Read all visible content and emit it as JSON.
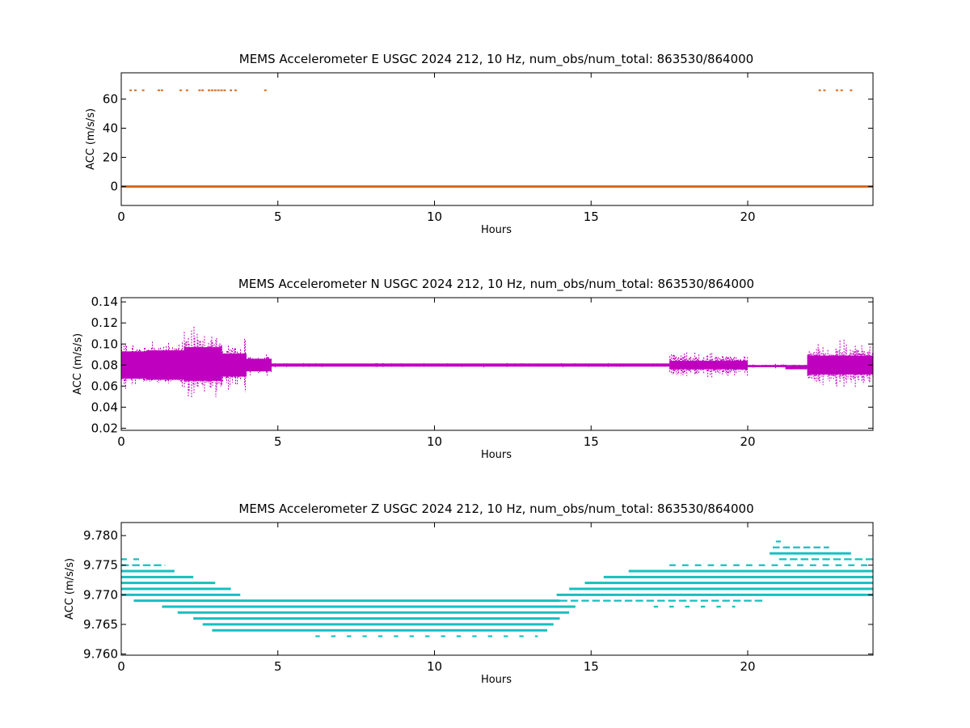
{
  "figure": {
    "background": "#ffffff"
  },
  "chart_data": [
    {
      "type": "scatter",
      "title": "MEMS Accelerometer E USGC 2024 212, 10 Hz, num_obs/num_total: 863530/864000",
      "xlabel": "Hours",
      "ylabel": "ACC (m/s/s)",
      "xlim": [
        0,
        24
      ],
      "ylim": [
        -13,
        78
      ],
      "xticks": [
        "0",
        "5",
        "10",
        "15",
        "20"
      ],
      "xtick_values": [
        0,
        5,
        10,
        15,
        20
      ],
      "yticks": [
        "0",
        "20",
        "40",
        "60"
      ],
      "ytick_values": [
        0,
        20,
        40,
        60
      ],
      "grid": false,
      "color": "#d2691e",
      "series": [
        {
          "baseline": {
            "x": [
              0,
              24
            ],
            "y": 0
          },
          "outliers": {
            "y": 66,
            "x": [
              0.3,
              0.45,
              0.7,
              1.2,
              1.3,
              1.9,
              2.1,
              2.5,
              2.6,
              2.8,
              2.9,
              3.0,
              3.1,
              3.2,
              3.3,
              3.5,
              3.65,
              4.6,
              22.3,
              22.45,
              22.85,
              23.0,
              23.3
            ]
          }
        }
      ]
    },
    {
      "type": "scatter",
      "title": "MEMS Accelerometer N USGC 2024 212, 10 Hz, num_obs/num_total: 863530/864000",
      "xlabel": "Hours",
      "ylabel": "ACC (m/s/s)",
      "xlim": [
        0,
        24
      ],
      "ylim": [
        0.018,
        0.144
      ],
      "xticks": [
        "0",
        "5",
        "10",
        "15",
        "20"
      ],
      "xtick_values": [
        0,
        5,
        10,
        15,
        20
      ],
      "yticks": [
        "0.02",
        "0.04",
        "0.06",
        "0.08",
        "0.10",
        "0.12",
        "0.14"
      ],
      "ytick_values": [
        0.02,
        0.04,
        0.06,
        0.08,
        0.1,
        0.12,
        0.14
      ],
      "grid": false,
      "color": "#bf00bf",
      "series": [
        {
          "segments": [
            {
              "x": [
                0.0,
                0.8
              ],
              "center": 0.08,
              "dense_halfwidth": 0.013,
              "sparse_halfwidth": 0.026
            },
            {
              "x": [
                0.8,
                2.0
              ],
              "center": 0.08,
              "dense_halfwidth": 0.014,
              "sparse_halfwidth": 0.028
            },
            {
              "x": [
                2.0,
                3.2
              ],
              "center": 0.081,
              "dense_halfwidth": 0.016,
              "sparse_halfwidth": 0.035
            },
            {
              "x": [
                3.2,
                4.0
              ],
              "center": 0.08,
              "dense_halfwidth": 0.011,
              "sparse_halfwidth": 0.024
            },
            {
              "x": [
                4.0,
                4.8
              ],
              "center": 0.08,
              "dense_halfwidth": 0.006,
              "sparse_halfwidth": 0.012
            },
            {
              "x": [
                4.8,
                17.5
              ],
              "center": 0.08,
              "dense_halfwidth": 0.0015,
              "sparse_halfwidth": 0.002
            },
            {
              "x": [
                17.5,
                20.0
              ],
              "center": 0.08,
              "dense_halfwidth": 0.004,
              "sparse_halfwidth": 0.012
            },
            {
              "x": [
                20.0,
                21.2
              ],
              "center": 0.079,
              "dense_halfwidth": 0.001,
              "sparse_halfwidth": 0.002
            },
            {
              "x": [
                21.2,
                21.9
              ],
              "center": 0.078,
              "dense_halfwidth": 0.002,
              "sparse_halfwidth": 0.003
            },
            {
              "x": [
                21.9,
                24.0
              ],
              "center": 0.08,
              "dense_halfwidth": 0.009,
              "sparse_halfwidth": 0.025
            }
          ]
        }
      ]
    },
    {
      "type": "scatter",
      "title": "MEMS Accelerometer Z USGC 2024 212, 10 Hz, num_obs/num_total: 863530/864000",
      "xlabel": "Hours",
      "ylabel": "ACC (m/s/s)",
      "xlim": [
        0,
        24
      ],
      "ylim": [
        9.7598,
        9.7822
      ],
      "xticks": [
        "0",
        "5",
        "10",
        "15",
        "20"
      ],
      "xtick_values": [
        0,
        5,
        10,
        15,
        20
      ],
      "yticks": [
        "9.760",
        "9.765",
        "9.770",
        "9.775",
        "9.780"
      ],
      "ytick_values": [
        9.76,
        9.765,
        9.77,
        9.775,
        9.78
      ],
      "grid": false,
      "color": "#17bfbf",
      "series": [
        {
          "levels": [
            {
              "y": 9.779,
              "x": [
                20.9,
                21.4
              ],
              "density": 0.4
            },
            {
              "y": 9.778,
              "x": [
                20.8,
                22.6
              ],
              "density": 0.7
            },
            {
              "y": 9.777,
              "x": [
                20.7,
                23.3
              ],
              "density": 0.9
            },
            {
              "y": 9.776,
              "x": [
                0.0,
                0.6
              ],
              "density": 0.5
            },
            {
              "y": 9.775,
              "x": [
                0.0,
                1.4
              ],
              "density": 0.8
            },
            {
              "y": 9.774,
              "x": [
                0.0,
                1.7
              ],
              "density": 1.0
            },
            {
              "y": 9.773,
              "x": [
                0.0,
                2.3
              ],
              "density": 1.0
            },
            {
              "y": 9.772,
              "x": [
                0.0,
                3.0
              ],
              "density": 1.0
            },
            {
              "y": 9.771,
              "x": [
                0.0,
                3.5
              ],
              "density": 1.0
            },
            {
              "y": 9.77,
              "x": [
                0.0,
                3.8
              ],
              "density": 0.9
            },
            {
              "y": 9.769,
              "x": [
                0.4,
                14.0
              ],
              "density": 1.0
            },
            {
              "y": 9.768,
              "x": [
                1.3,
                14.5
              ],
              "density": 1.0
            },
            {
              "y": 9.767,
              "x": [
                1.8,
                14.3
              ],
              "density": 1.0
            },
            {
              "y": 9.766,
              "x": [
                2.3,
                14.0
              ],
              "density": 1.0
            },
            {
              "y": 9.765,
              "x": [
                2.6,
                13.8
              ],
              "density": 1.0
            },
            {
              "y": 9.764,
              "x": [
                2.9,
                13.6
              ],
              "density": 0.9
            },
            {
              "y": 9.763,
              "x": [
                6.2,
                13.3
              ],
              "density": 0.3
            },
            {
              "y": 9.776,
              "x": [
                21.0,
                24.0
              ],
              "density": 0.8
            },
            {
              "y": 9.775,
              "x": [
                17.5,
                24.0
              ],
              "density": 0.6
            },
            {
              "y": 9.774,
              "x": [
                16.2,
                24.0
              ],
              "density": 1.0
            },
            {
              "y": 9.773,
              "x": [
                15.4,
                24.0
              ],
              "density": 1.0
            },
            {
              "y": 9.772,
              "x": [
                14.8,
                24.0
              ],
              "density": 1.0
            },
            {
              "y": 9.771,
              "x": [
                14.3,
                24.0
              ],
              "density": 1.0
            },
            {
              "y": 9.77,
              "x": [
                13.9,
                24.0
              ],
              "density": 1.0
            },
            {
              "y": 9.769,
              "x": [
                14.0,
                20.5
              ],
              "density": 0.8
            },
            {
              "y": 9.768,
              "x": [
                17.0,
                19.6
              ],
              "density": 0.3
            }
          ]
        }
      ]
    }
  ]
}
